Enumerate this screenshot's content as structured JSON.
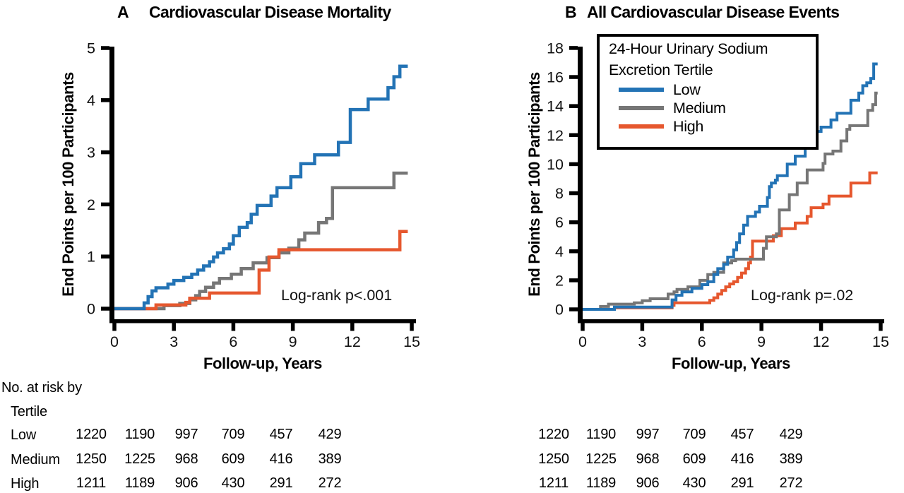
{
  "figure": {
    "panels": [
      {
        "letter": "A",
        "title": "Cardiovascular Disease Mortality",
        "ylabel": "End Points per 100 Participants",
        "xlabel": "Follow-up, Years",
        "annotation": "Log-rank p<.001"
      },
      {
        "letter": "B",
        "title": "All Cardiovascular Disease Events",
        "ylabel": "End Points per 100 Participants",
        "xlabel": "Follow-up, Years",
        "annotation": "Log-rank p=.02"
      }
    ],
    "legend": {
      "title_line1": "24-Hour Urinary Sodium",
      "title_line2": "Excretion Tertile",
      "items": [
        {
          "label": "Low",
          "color": "#2373b5"
        },
        {
          "label": "Medium",
          "color": "#767676"
        },
        {
          "label": "High",
          "color": "#e6572e"
        }
      ]
    },
    "risk_table": {
      "header_line1": "No. at risk by",
      "header_line2": "Tertile",
      "row_labels": [
        "Low",
        "Medium",
        "High"
      ],
      "time_points": [
        0,
        3,
        6,
        9,
        12,
        15
      ],
      "counts": [
        [
          1220,
          1190,
          997,
          709,
          457,
          429
        ],
        [
          1250,
          1225,
          968,
          609,
          416,
          389
        ],
        [
          1211,
          1189,
          906,
          430,
          291,
          272
        ]
      ]
    }
  },
  "chart_data": [
    {
      "type": "line",
      "subtype": "step",
      "title": "A Cardiovascular Disease Mortality",
      "xlabel": "Follow-up, Years",
      "ylabel": "End Points per 100 Participants",
      "xlim": [
        0,
        15
      ],
      "ylim": [
        0,
        5
      ],
      "xticks": [
        0,
        3,
        6,
        9,
        12,
        15
      ],
      "yticks": [
        0,
        1,
        2,
        3,
        4,
        5
      ],
      "grid": false,
      "legend_position": "none",
      "annotation": "Log-rank p<.001",
      "series": [
        {
          "name": "Low",
          "color": "#2373b5",
          "x_end": 14.8,
          "points": [
            [
              0,
              0
            ],
            [
              1.5,
              0.11
            ],
            [
              1.7,
              0.23
            ],
            [
              1.9,
              0.34
            ],
            [
              2.1,
              0.4
            ],
            [
              2.7,
              0.47
            ],
            [
              3.0,
              0.54
            ],
            [
              3.5,
              0.6
            ],
            [
              3.9,
              0.66
            ],
            [
              4.2,
              0.74
            ],
            [
              4.5,
              0.82
            ],
            [
              4.8,
              0.9
            ],
            [
              5.0,
              0.99
            ],
            [
              5.2,
              1.07
            ],
            [
              5.5,
              1.15
            ],
            [
              5.8,
              1.24
            ],
            [
              6.0,
              1.4
            ],
            [
              6.3,
              1.56
            ],
            [
              6.7,
              1.65
            ],
            [
              6.9,
              1.81
            ],
            [
              7.2,
              1.98
            ],
            [
              7.9,
              2.16
            ],
            [
              8.2,
              2.32
            ],
            [
              8.9,
              2.53
            ],
            [
              9.4,
              2.78
            ],
            [
              10.1,
              2.95
            ],
            [
              11.3,
              3.19
            ],
            [
              11.9,
              3.82
            ],
            [
              12.8,
              4.02
            ],
            [
              13.8,
              4.24
            ],
            [
              14.1,
              4.45
            ],
            [
              14.4,
              4.65
            ]
          ]
        },
        {
          "name": "Medium",
          "color": "#767676",
          "x_end": 14.8,
          "points": [
            [
              0,
              0
            ],
            [
              2.5,
              0.06
            ],
            [
              3.3,
              0.1
            ],
            [
              3.8,
              0.17
            ],
            [
              4.1,
              0.25
            ],
            [
              4.3,
              0.33
            ],
            [
              4.6,
              0.41
            ],
            [
              5.0,
              0.49
            ],
            [
              5.3,
              0.58
            ],
            [
              5.9,
              0.66
            ],
            [
              6.4,
              0.77
            ],
            [
              7.0,
              0.88
            ],
            [
              7.7,
              0.98
            ],
            [
              8.3,
              1.07
            ],
            [
              8.8,
              1.16
            ],
            [
              9.3,
              1.32
            ],
            [
              9.6,
              1.45
            ],
            [
              10.3,
              1.65
            ],
            [
              10.7,
              1.73
            ],
            [
              11.0,
              2.32
            ],
            [
              14.1,
              2.6
            ]
          ]
        },
        {
          "name": "High",
          "color": "#e6572e",
          "x_end": 14.8,
          "points": [
            [
              0,
              0
            ],
            [
              2.1,
              0.07
            ],
            [
              3.6,
              0.12
            ],
            [
              3.8,
              0.2
            ],
            [
              4.8,
              0.3
            ],
            [
              7.3,
              0.74
            ],
            [
              7.8,
              0.99
            ],
            [
              8.3,
              1.13
            ],
            [
              14.4,
              1.48
            ]
          ]
        }
      ]
    },
    {
      "type": "line",
      "subtype": "step",
      "title": "B All Cardiovascular Disease Events",
      "xlabel": "Follow-up, Years",
      "ylabel": "End Points per 100 Participants",
      "xlim": [
        0,
        15
      ],
      "ylim": [
        0,
        18
      ],
      "xticks": [
        0,
        3,
        6,
        9,
        12,
        15
      ],
      "yticks": [
        0,
        2,
        4,
        6,
        8,
        10,
        12,
        14,
        16,
        18
      ],
      "grid": false,
      "legend_position": "upper-left",
      "annotation": "Log-rank p=.02",
      "series": [
        {
          "name": "Low",
          "color": "#2373b5",
          "x_end": 14.85,
          "points": [
            [
              0,
              0
            ],
            [
              1.6,
              0.16
            ],
            [
              4.5,
              0.65
            ],
            [
              4.7,
              0.97
            ],
            [
              5.0,
              1.2
            ],
            [
              5.5,
              1.45
            ],
            [
              6.0,
              1.7
            ],
            [
              6.3,
              1.9
            ],
            [
              6.6,
              2.4
            ],
            [
              6.8,
              2.8
            ],
            [
              7.1,
              3.1
            ],
            [
              7.3,
              3.6
            ],
            [
              7.6,
              4.1
            ],
            [
              7.75,
              4.6
            ],
            [
              7.9,
              5.2
            ],
            [
              8.1,
              5.8
            ],
            [
              8.3,
              6.4
            ],
            [
              8.7,
              6.7
            ],
            [
              8.9,
              7.1
            ],
            [
              9.3,
              7.7
            ],
            [
              9.4,
              8.45
            ],
            [
              9.5,
              8.7
            ],
            [
              9.7,
              8.9
            ],
            [
              9.8,
              9.2
            ],
            [
              10.3,
              10.0
            ],
            [
              10.7,
              10.55
            ],
            [
              11.2,
              11.5
            ],
            [
              11.6,
              11.85
            ],
            [
              11.8,
              12.25
            ],
            [
              12.0,
              12.55
            ],
            [
              12.5,
              13.05
            ],
            [
              12.8,
              13.5
            ],
            [
              13.5,
              14.4
            ],
            [
              13.9,
              14.9
            ],
            [
              14.1,
              15.4
            ],
            [
              14.3,
              15.6
            ],
            [
              14.5,
              15.9
            ],
            [
              14.65,
              16.9
            ]
          ]
        },
        {
          "name": "Medium",
          "color": "#767676",
          "x_end": 14.85,
          "points": [
            [
              0,
              0
            ],
            [
              0.9,
              0.2
            ],
            [
              1.3,
              0.36
            ],
            [
              2.6,
              0.45
            ],
            [
              3.0,
              0.6
            ],
            [
              3.4,
              0.73
            ],
            [
              4.3,
              1.05
            ],
            [
              4.6,
              1.2
            ],
            [
              4.75,
              1.37
            ],
            [
              5.3,
              1.55
            ],
            [
              5.9,
              2.0
            ],
            [
              6.3,
              2.4
            ],
            [
              6.6,
              2.55
            ],
            [
              7.1,
              3.2
            ],
            [
              7.5,
              3.35
            ],
            [
              7.7,
              3.46
            ],
            [
              9.1,
              4.2
            ],
            [
              9.25,
              5.0
            ],
            [
              9.75,
              5.2
            ],
            [
              9.9,
              6.85
            ],
            [
              10.4,
              7.9
            ],
            [
              10.8,
              8.7
            ],
            [
              11.3,
              9.6
            ],
            [
              12.1,
              10.05
            ],
            [
              12.2,
              10.7
            ],
            [
              12.6,
              10.9
            ],
            [
              13.0,
              11.6
            ],
            [
              13.3,
              12.4
            ],
            [
              13.45,
              12.65
            ],
            [
              14.35,
              13.7
            ],
            [
              14.6,
              14.1
            ],
            [
              14.75,
              14.9
            ]
          ]
        },
        {
          "name": "High",
          "color": "#e6572e",
          "x_end": 14.85,
          "points": [
            [
              0,
              0
            ],
            [
              1.6,
              0.1
            ],
            [
              4.5,
              0.27
            ],
            [
              4.6,
              0.45
            ],
            [
              6.4,
              0.62
            ],
            [
              6.6,
              0.8
            ],
            [
              6.8,
              1.05
            ],
            [
              7.0,
              1.3
            ],
            [
              7.2,
              1.55
            ],
            [
              7.4,
              1.75
            ],
            [
              7.6,
              1.9
            ],
            [
              7.8,
              2.2
            ],
            [
              8.0,
              2.5
            ],
            [
              8.2,
              2.8
            ],
            [
              8.35,
              3.2
            ],
            [
              8.45,
              3.6
            ],
            [
              8.55,
              4.7
            ],
            [
              9.6,
              5.07
            ],
            [
              10.0,
              5.56
            ],
            [
              10.7,
              5.95
            ],
            [
              11.3,
              6.4
            ],
            [
              11.5,
              7.0
            ],
            [
              12.1,
              7.25
            ],
            [
              12.4,
              7.8
            ],
            [
              13.5,
              8.7
            ],
            [
              14.45,
              9.4
            ]
          ]
        }
      ]
    }
  ]
}
